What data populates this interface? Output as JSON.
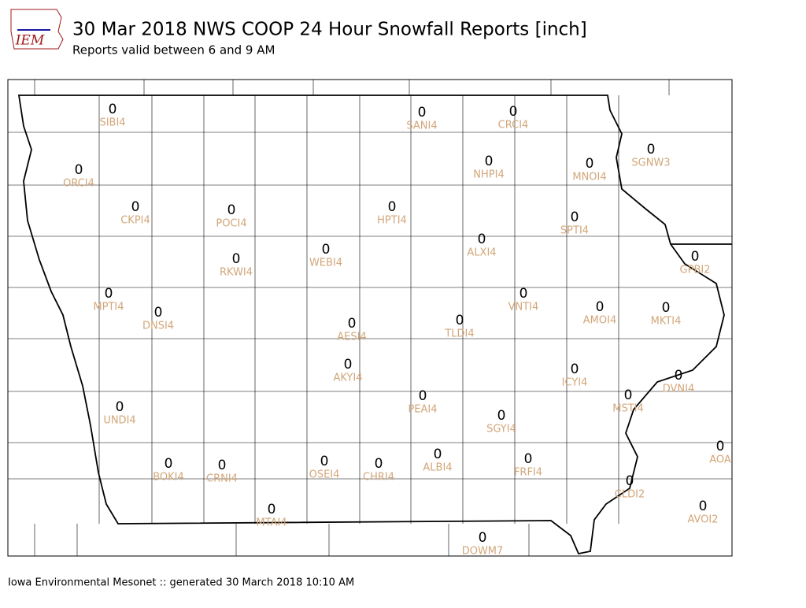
{
  "logo": "IEM",
  "header": {
    "title": "30 Mar 2018 NWS COOP 24 Hour Snowfall Reports [inch]",
    "subtitle": "Reports valid between 6 and 9 AM"
  },
  "stations": [
    {
      "id": "SIBI4",
      "value": 0
    },
    {
      "id": "SANI4",
      "value": 0
    },
    {
      "id": "CRCI4",
      "value": 0
    },
    {
      "id": "ORCI4",
      "value": 0
    },
    {
      "id": "NHPI4",
      "value": 0
    },
    {
      "id": "MNOI4",
      "value": 0
    },
    {
      "id": "SGNW3",
      "value": 0
    },
    {
      "id": "CKPI4",
      "value": 0
    },
    {
      "id": "POCI4",
      "value": 0
    },
    {
      "id": "HPTI4",
      "value": 0
    },
    {
      "id": "SPTI4",
      "value": 0
    },
    {
      "id": "ALXI4",
      "value": 0
    },
    {
      "id": "RKWI4",
      "value": 0
    },
    {
      "id": "WEBI4",
      "value": 0
    },
    {
      "id": "GPBI2",
      "value": 0
    },
    {
      "id": "MPTI4",
      "value": 0
    },
    {
      "id": "DNSI4",
      "value": 0
    },
    {
      "id": "VNTI4",
      "value": 0
    },
    {
      "id": "AMOI4",
      "value": 0
    },
    {
      "id": "MKTI4",
      "value": 0
    },
    {
      "id": "AESI4",
      "value": 0
    },
    {
      "id": "TLDI4",
      "value": 0
    },
    {
      "id": "AKYI4",
      "value": 0
    },
    {
      "id": "ICYI4",
      "value": 0
    },
    {
      "id": "DVNI4",
      "value": 0
    },
    {
      "id": "MSTI4",
      "value": 0
    },
    {
      "id": "PEAI4",
      "value": 0
    },
    {
      "id": "UNDI4",
      "value": 0
    },
    {
      "id": "SGYI4",
      "value": 0
    },
    {
      "id": "AOA",
      "value": 0
    },
    {
      "id": "ALBI4",
      "value": 0
    },
    {
      "id": "FRFI4",
      "value": 0
    },
    {
      "id": "OSEI4",
      "value": 0
    },
    {
      "id": "CHRI4",
      "value": 0
    },
    {
      "id": "BOKI4",
      "value": 0
    },
    {
      "id": "CRNI4",
      "value": 0
    },
    {
      "id": "CLDI2",
      "value": 0
    },
    {
      "id": "AVOI2",
      "value": 0
    },
    {
      "id": "MTAI4",
      "value": 0
    },
    {
      "id": "DOWM7",
      "value": 0
    }
  ],
  "footer": "Iowa Environmental Mesonet :: generated 30 March 2018 10:10 AM"
}
